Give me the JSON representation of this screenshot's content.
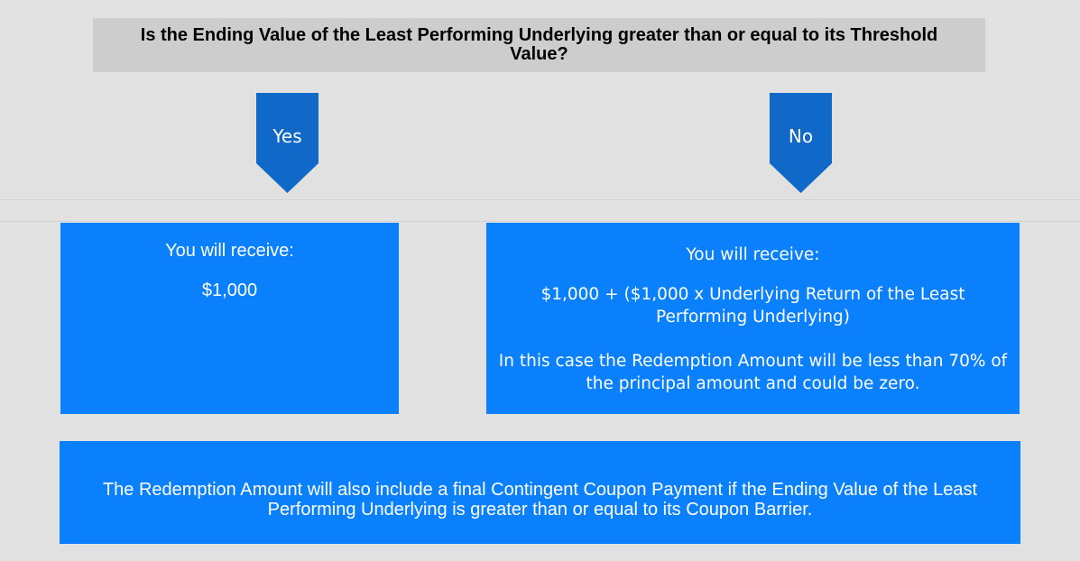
{
  "question": "Is the Ending Value of the Least Performing Underlying greater than or equal to its Threshold Value?",
  "branches": {
    "yes": {
      "label": "Yes",
      "heading": "You will receive:",
      "amount": "$1,000"
    },
    "no": {
      "label": "No",
      "heading": "You will receive:",
      "formula": "$1,000 + ($1,000 x Underlying Return of the Least Performing Underlying)",
      "note": "In this case the Redemption Amount will be less than 70% of the principal amount and could be zero."
    }
  },
  "footer": "The Redemption Amount will also include a final Contingent Coupon Payment if the Ending Value of the Least Performing Underlying is greater than or equal to its Coupon Barrier.",
  "colors": {
    "background": "#e1e1e1",
    "question_box": "#cdcdcd",
    "arrow": "#1068c9",
    "box": "#0a80fc",
    "box_text": "#ffffff"
  }
}
